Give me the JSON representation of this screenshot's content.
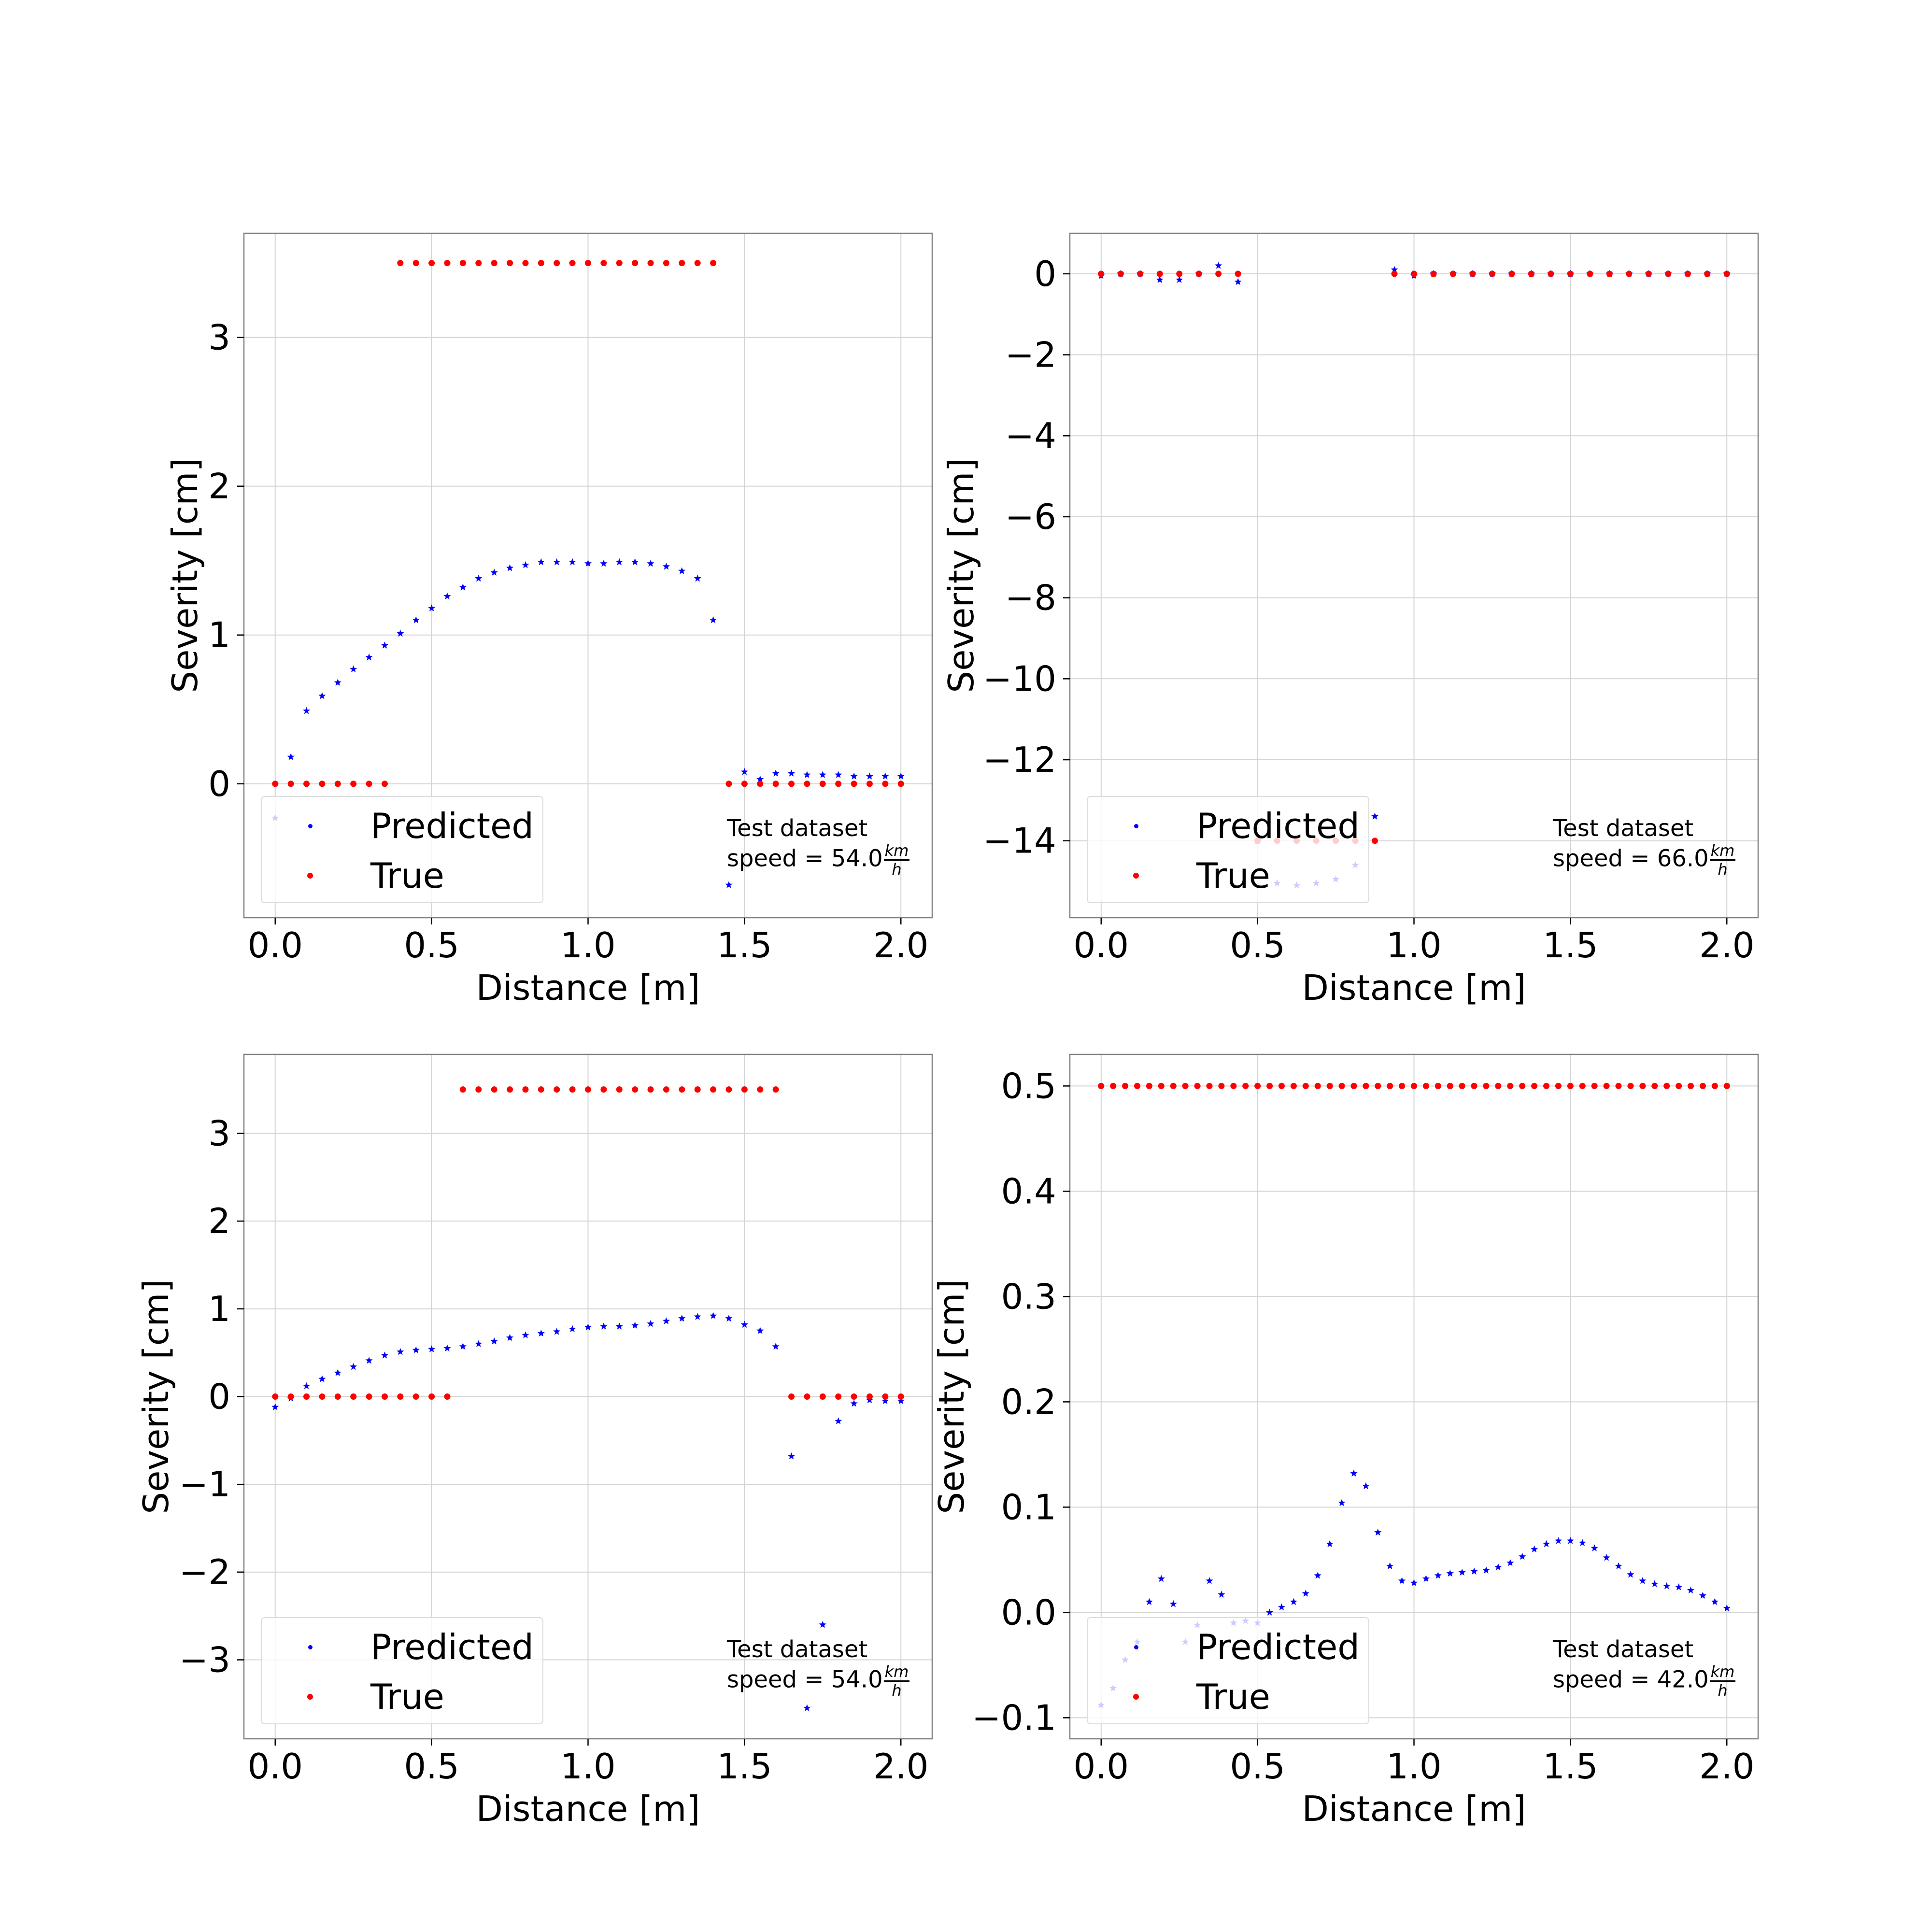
{
  "chart_data": [
    {
      "type": "scatter",
      "xlabel": "Distance [m]",
      "ylabel": "Severity [cm]",
      "xlim": [
        -0.1,
        2.1
      ],
      "ylim": [
        -0.9,
        3.7
      ],
      "xticks": [
        0.0,
        0.5,
        1.0,
        1.5,
        2.0
      ],
      "xtick_labels": [
        "0.0",
        "0.5",
        "1.0",
        "1.5",
        "2.0"
      ],
      "yticks": [
        0,
        1,
        2,
        3
      ],
      "ytick_labels": [
        "0",
        "1",
        "2",
        "3"
      ],
      "grid": true,
      "legend_position": "lower-left",
      "annotation": {
        "line1": "Test dataset",
        "speed_prefix": "speed = ",
        "speed_value": "54.0",
        "unit_num": "km",
        "unit_den": "h",
        "position": "lower-right"
      },
      "series": [
        {
          "name": "Predicted",
          "color": "#0000ff",
          "marker": "star",
          "x": [
            0.0,
            0.05,
            0.1,
            0.15,
            0.2,
            0.25,
            0.3,
            0.35,
            0.4,
            0.45,
            0.5,
            0.55,
            0.6,
            0.65,
            0.7,
            0.75,
            0.8,
            0.85,
            0.9,
            0.95,
            1.0,
            1.05,
            1.1,
            1.15,
            1.2,
            1.25,
            1.3,
            1.35,
            1.4,
            1.45,
            1.5,
            1.55,
            1.6,
            1.65,
            1.7,
            1.75,
            1.8,
            1.85,
            1.9,
            1.95,
            2.0
          ],
          "y": [
            -0.23,
            0.18,
            0.49,
            0.59,
            0.68,
            0.77,
            0.85,
            0.93,
            1.01,
            1.1,
            1.18,
            1.26,
            1.32,
            1.38,
            1.42,
            1.45,
            1.47,
            1.49,
            1.49,
            1.49,
            1.48,
            1.48,
            1.49,
            1.49,
            1.48,
            1.46,
            1.43,
            1.38,
            1.1,
            -0.68,
            0.08,
            0.03,
            0.07,
            0.07,
            0.06,
            0.06,
            0.06,
            0.05,
            0.05,
            0.05,
            0.05
          ]
        },
        {
          "name": "True",
          "color": "#ff0000",
          "marker": "dot",
          "x": [
            0.0,
            0.05,
            0.1,
            0.15,
            0.2,
            0.25,
            0.3,
            0.35,
            0.4,
            0.45,
            0.5,
            0.55,
            0.6,
            0.65,
            0.7,
            0.75,
            0.8,
            0.85,
            0.9,
            0.95,
            1.0,
            1.05,
            1.1,
            1.15,
            1.2,
            1.25,
            1.3,
            1.35,
            1.4,
            1.45,
            1.5,
            1.55,
            1.6,
            1.65,
            1.7,
            1.75,
            1.8,
            1.85,
            1.9,
            1.95,
            2.0
          ],
          "y": [
            0,
            0,
            0,
            0,
            0,
            0,
            0,
            0,
            3.5,
            3.5,
            3.5,
            3.5,
            3.5,
            3.5,
            3.5,
            3.5,
            3.5,
            3.5,
            3.5,
            3.5,
            3.5,
            3.5,
            3.5,
            3.5,
            3.5,
            3.5,
            3.5,
            3.5,
            3.5,
            0,
            0,
            0,
            0,
            0,
            0,
            0,
            0,
            0,
            0,
            0,
            0
          ]
        }
      ]
    },
    {
      "type": "scatter",
      "xlabel": "Distance [m]",
      "ylabel": "Severity [cm]",
      "xlim": [
        -0.1,
        2.1
      ],
      "ylim": [
        -15.9,
        1.0
      ],
      "xticks": [
        0.0,
        0.5,
        1.0,
        1.5,
        2.0
      ],
      "xtick_labels": [
        "0.0",
        "0.5",
        "1.0",
        "1.5",
        "2.0"
      ],
      "yticks": [
        0,
        -2,
        -4,
        -6,
        -8,
        -10,
        -12,
        -14
      ],
      "ytick_labels": [
        "0",
        "−2",
        "−4",
        "−6",
        "−8",
        "−10",
        "−12",
        "−14"
      ],
      "grid": true,
      "legend_position": "lower-left",
      "annotation": {
        "line1": "Test dataset",
        "speed_prefix": "speed = ",
        "speed_value": "66.0",
        "unit_num": "km",
        "unit_den": "h",
        "position": "lower-right"
      },
      "series": [
        {
          "name": "Predicted",
          "color": "#0000ff",
          "marker": "star",
          "x": [
            0.0,
            0.0625,
            0.125,
            0.1875,
            0.25,
            0.3125,
            0.375,
            0.4375,
            0.5,
            0.5625,
            0.625,
            0.6875,
            0.75,
            0.8125,
            0.875,
            0.9375,
            1.0,
            1.0625,
            1.125,
            1.1875,
            1.25,
            1.3125,
            1.375,
            1.4375,
            1.5,
            1.5625,
            1.625,
            1.6875,
            1.75,
            1.8125,
            1.875,
            1.9375,
            2.0
          ],
          "y": [
            -0.05,
            0.0,
            0.0,
            -0.15,
            -0.15,
            0.0,
            0.2,
            -0.2,
            -14.0,
            -15.05,
            -15.1,
            -15.05,
            -14.95,
            -14.6,
            -13.4,
            0.1,
            -0.05,
            0.0,
            0.0,
            0.0,
            0.0,
            0.0,
            0.0,
            0.0,
            0.0,
            0.0,
            0.0,
            0.0,
            0.0,
            0.0,
            0.0,
            0.0,
            0.0
          ]
        },
        {
          "name": "True",
          "color": "#ff0000",
          "marker": "dot",
          "x": [
            0.0,
            0.0625,
            0.125,
            0.1875,
            0.25,
            0.3125,
            0.375,
            0.4375,
            0.5,
            0.5625,
            0.625,
            0.6875,
            0.75,
            0.8125,
            0.875,
            0.9375,
            1.0,
            1.0625,
            1.125,
            1.1875,
            1.25,
            1.3125,
            1.375,
            1.4375,
            1.5,
            1.5625,
            1.625,
            1.6875,
            1.75,
            1.8125,
            1.875,
            1.9375,
            2.0
          ],
          "y": [
            0,
            0,
            0,
            0,
            0,
            0,
            0,
            0,
            -14,
            -14,
            -14,
            -14,
            -14,
            -14,
            -14,
            0,
            0,
            0,
            0,
            0,
            0,
            0,
            0,
            0,
            0,
            0,
            0,
            0,
            0,
            0,
            0,
            0,
            0
          ]
        }
      ]
    },
    {
      "type": "scatter",
      "xlabel": "Distance [m]",
      "ylabel": "Severity [cm]",
      "xlim": [
        -0.1,
        2.1
      ],
      "ylim": [
        -3.9,
        3.9
      ],
      "xticks": [
        0.0,
        0.5,
        1.0,
        1.5,
        2.0
      ],
      "xtick_labels": [
        "0.0",
        "0.5",
        "1.0",
        "1.5",
        "2.0"
      ],
      "yticks": [
        3,
        2,
        1,
        0,
        -1,
        -2,
        -3
      ],
      "ytick_labels": [
        "3",
        "2",
        "1",
        "0",
        "−1",
        "−2",
        "−3"
      ],
      "grid": true,
      "legend_position": "lower-left",
      "annotation": {
        "line1": "Test dataset",
        "speed_prefix": "speed = ",
        "speed_value": "54.0",
        "unit_num": "km",
        "unit_den": "h",
        "position": "lower-right"
      },
      "series": [
        {
          "name": "Predicted",
          "color": "#0000ff",
          "marker": "star",
          "x": [
            0.0,
            0.05,
            0.1,
            0.15,
            0.2,
            0.25,
            0.3,
            0.35,
            0.4,
            0.45,
            0.5,
            0.55,
            0.6,
            0.65,
            0.7,
            0.75,
            0.8,
            0.85,
            0.9,
            0.95,
            1.0,
            1.05,
            1.1,
            1.15,
            1.2,
            1.25,
            1.3,
            1.35,
            1.4,
            1.45,
            1.5,
            1.55,
            1.6,
            1.65,
            1.7,
            1.75,
            1.8,
            1.85,
            1.9,
            1.95,
            2.0
          ],
          "y": [
            -0.12,
            -0.02,
            0.12,
            0.2,
            0.27,
            0.34,
            0.41,
            0.47,
            0.51,
            0.53,
            0.54,
            0.55,
            0.57,
            0.6,
            0.63,
            0.67,
            0.7,
            0.72,
            0.74,
            0.77,
            0.79,
            0.8,
            0.8,
            0.81,
            0.83,
            0.86,
            0.89,
            0.91,
            0.92,
            0.89,
            0.82,
            0.75,
            0.57,
            -0.68,
            -3.55,
            -2.6,
            -0.28,
            -0.08,
            -0.04,
            -0.05,
            -0.05
          ]
        },
        {
          "name": "True",
          "color": "#ff0000",
          "marker": "dot",
          "x": [
            0.0,
            0.05,
            0.1,
            0.15,
            0.2,
            0.25,
            0.3,
            0.35,
            0.4,
            0.45,
            0.5,
            0.55,
            0.6,
            0.65,
            0.7,
            0.75,
            0.8,
            0.85,
            0.9,
            0.95,
            1.0,
            1.05,
            1.1,
            1.15,
            1.2,
            1.25,
            1.3,
            1.35,
            1.4,
            1.45,
            1.5,
            1.55,
            1.6,
            1.65,
            1.7,
            1.75,
            1.8,
            1.85,
            1.9,
            1.95,
            2.0
          ],
          "y": [
            0,
            0,
            0,
            0,
            0,
            0,
            0,
            0,
            0,
            0,
            0,
            0,
            3.5,
            3.5,
            3.5,
            3.5,
            3.5,
            3.5,
            3.5,
            3.5,
            3.5,
            3.5,
            3.5,
            3.5,
            3.5,
            3.5,
            3.5,
            3.5,
            3.5,
            3.5,
            3.5,
            3.5,
            3.5,
            0,
            0,
            0,
            0,
            0,
            0,
            0,
            0
          ]
        }
      ]
    },
    {
      "type": "scatter",
      "xlabel": "Distance [m]",
      "ylabel": "Severity [cm]",
      "xlim": [
        -0.1,
        2.1
      ],
      "ylim": [
        -0.12,
        0.53
      ],
      "xticks": [
        0.0,
        0.5,
        1.0,
        1.5,
        2.0
      ],
      "xtick_labels": [
        "0.0",
        "0.5",
        "1.0",
        "1.5",
        "2.0"
      ],
      "yticks": [
        0.5,
        0.4,
        0.3,
        0.2,
        0.1,
        0.0,
        -0.1
      ],
      "ytick_labels": [
        "0.5",
        "0.4",
        "0.3",
        "0.2",
        "0.1",
        "0.0",
        "−0.1"
      ],
      "grid": true,
      "legend_position": "lower-left",
      "annotation": {
        "line1": "Test dataset",
        "speed_prefix": "speed = ",
        "speed_value": "42.0",
        "unit_num": "km",
        "unit_den": "h",
        "position": "lower-right"
      },
      "series": [
        {
          "name": "Predicted",
          "color": "#0000ff",
          "marker": "star",
          "x": [
            0.0,
            0.0385,
            0.0769,
            0.1154,
            0.1538,
            0.1923,
            0.2308,
            0.2692,
            0.3077,
            0.3462,
            0.3846,
            0.4231,
            0.4615,
            0.5,
            0.5385,
            0.5769,
            0.6154,
            0.6538,
            0.6923,
            0.7308,
            0.7692,
            0.8077,
            0.8462,
            0.8846,
            0.9231,
            0.9615,
            1.0,
            1.0385,
            1.0769,
            1.1154,
            1.1538,
            1.1923,
            1.2308,
            1.2692,
            1.3077,
            1.3462,
            1.3846,
            1.4231,
            1.4615,
            1.5,
            1.5385,
            1.5769,
            1.6154,
            1.6538,
            1.6923,
            1.7308,
            1.7692,
            1.8077,
            1.8462,
            1.8846,
            1.9231,
            1.9615,
            2.0
          ],
          "y": [
            -0.088,
            -0.072,
            -0.045,
            -0.028,
            0.01,
            0.032,
            0.008,
            -0.028,
            -0.012,
            0.03,
            0.017,
            -0.01,
            -0.008,
            -0.01,
            0.0,
            0.005,
            0.01,
            0.018,
            0.035,
            0.065,
            0.104,
            0.132,
            0.12,
            0.076,
            0.044,
            0.03,
            0.028,
            0.032,
            0.035,
            0.037,
            0.038,
            0.039,
            0.04,
            0.043,
            0.047,
            0.053,
            0.06,
            0.065,
            0.068,
            0.068,
            0.066,
            0.061,
            0.052,
            0.044,
            0.036,
            0.03,
            0.027,
            0.025,
            0.024,
            0.021,
            0.016,
            0.01,
            0.004
          ]
        },
        {
          "name": "True",
          "color": "#ff0000",
          "marker": "dot",
          "x": [
            0.0,
            0.0385,
            0.0769,
            0.1154,
            0.1538,
            0.1923,
            0.2308,
            0.2692,
            0.3077,
            0.3462,
            0.3846,
            0.4231,
            0.4615,
            0.5,
            0.5385,
            0.5769,
            0.6154,
            0.6538,
            0.6923,
            0.7308,
            0.7692,
            0.8077,
            0.8462,
            0.8846,
            0.9231,
            0.9615,
            1.0,
            1.0385,
            1.0769,
            1.1154,
            1.1538,
            1.1923,
            1.2308,
            1.2692,
            1.3077,
            1.3462,
            1.3846,
            1.4231,
            1.4615,
            1.5,
            1.5385,
            1.5769,
            1.6154,
            1.6538,
            1.6923,
            1.7308,
            1.7692,
            1.8077,
            1.8462,
            1.8846,
            1.9231,
            1.9615,
            2.0
          ],
          "y": [
            0.5,
            0.5,
            0.5,
            0.5,
            0.5,
            0.5,
            0.5,
            0.5,
            0.5,
            0.5,
            0.5,
            0.5,
            0.5,
            0.5,
            0.5,
            0.5,
            0.5,
            0.5,
            0.5,
            0.5,
            0.5,
            0.5,
            0.5,
            0.5,
            0.5,
            0.5,
            0.5,
            0.5,
            0.5,
            0.5,
            0.5,
            0.5,
            0.5,
            0.5,
            0.5,
            0.5,
            0.5,
            0.5,
            0.5,
            0.5,
            0.5,
            0.5,
            0.5,
            0.5,
            0.5,
            0.5,
            0.5,
            0.5,
            0.5,
            0.5,
            0.5,
            0.5,
            0.5
          ]
        }
      ]
    }
  ]
}
